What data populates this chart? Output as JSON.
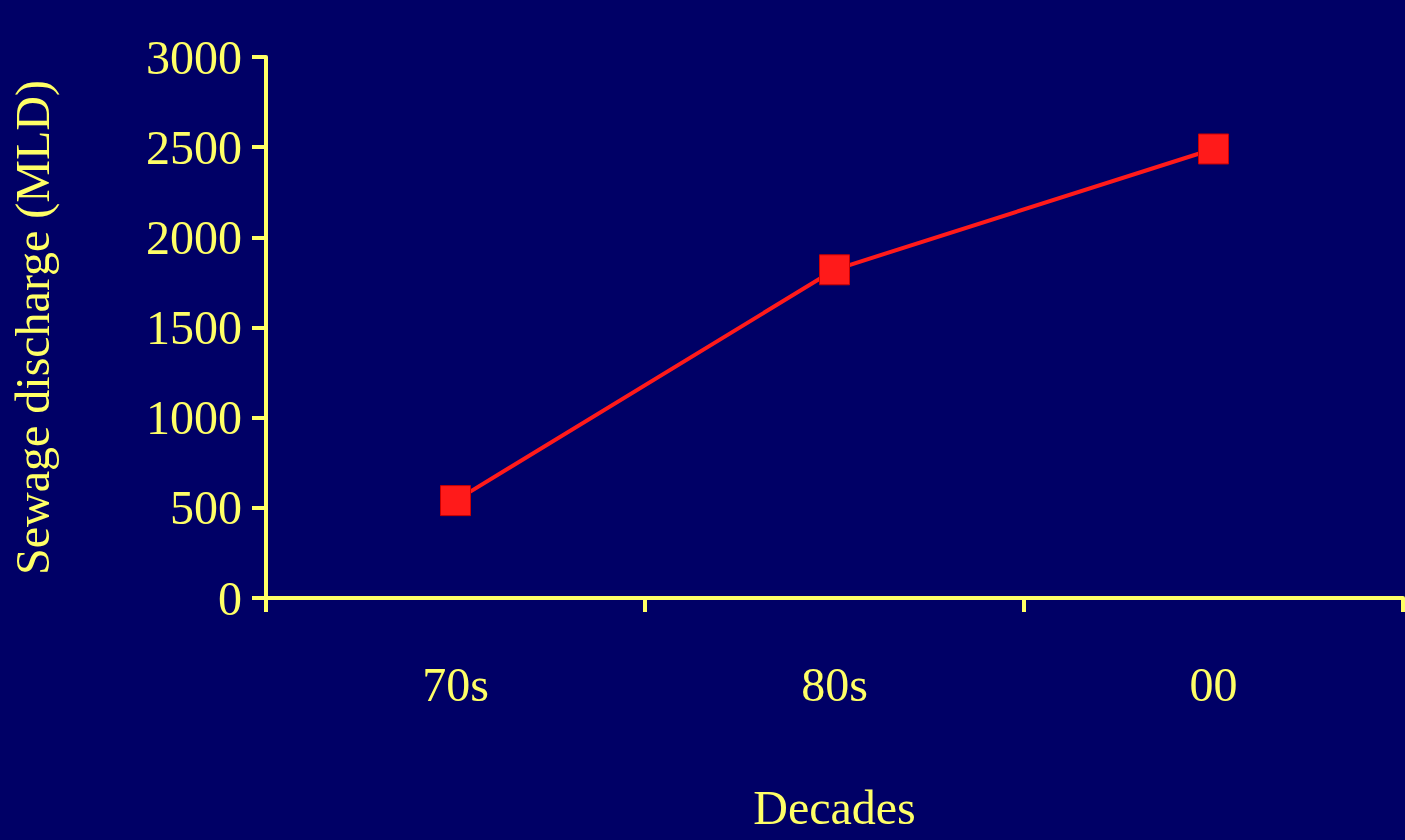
{
  "chart_data": {
    "type": "line",
    "xlabel": "Decades",
    "ylabel": "Sewage discharge (MLD)",
    "categories": [
      "70s",
      "80s",
      "00"
    ],
    "series": [
      {
        "color": "#ff1a1a",
        "values": [
          540,
          1820,
          2490
        ]
      }
    ],
    "ylim": [
      0,
      3000
    ],
    "yticks": [
      0,
      500,
      1000,
      1500,
      2000,
      2500,
      3000
    ],
    "grid": false,
    "marker": "square",
    "line_style": "solid"
  }
}
